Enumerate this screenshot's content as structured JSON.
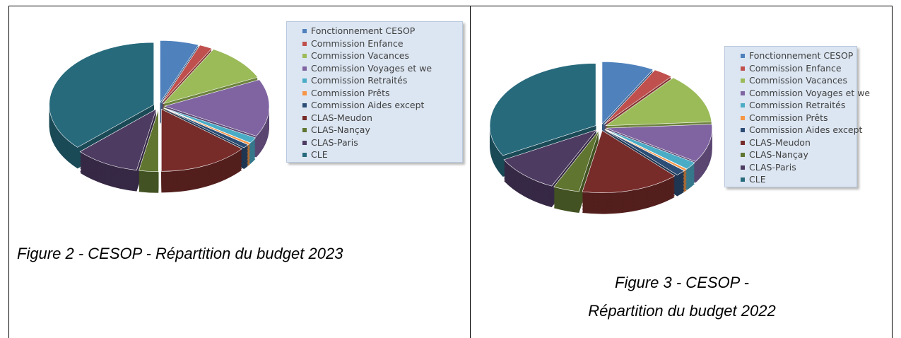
{
  "chart_data": [
    {
      "type": "pie",
      "caption": "Figure 2 - CESOP - Répartition du budget 2023",
      "categories": [
        "Fonctionnement CESOP",
        "Commission Enfance",
        "Commission Vacances",
        "Commission Voyages et we",
        "Commission Retraités",
        "Commission Prêts",
        "Commission Aides except",
        "CLAS-Meudon",
        "CLAS-Nançay",
        "CLAS-Paris",
        "CLE"
      ],
      "values": [
        6,
        2,
        10,
        15,
        1.5,
        0.5,
        1,
        14,
        3,
        10,
        37
      ],
      "colors": [
        "#4f81bd",
        "#c0504d",
        "#9bbb59",
        "#8064a2",
        "#4bacc6",
        "#f79646",
        "#2c4d75",
        "#772c2a",
        "#5f7530",
        "#4d3b62",
        "#276a7c"
      ]
    },
    {
      "type": "pie",
      "caption": "Figure 3 - CESOP - Répartition du budget 2022",
      "categories": [
        "Fonctionnement CESOP",
        "Commission Enfance",
        "Commission Vacances",
        "Commission Voyages et we",
        "Commission Retraités",
        "Commission Prêts",
        "Commission Aides except",
        "CLAS-Meudon",
        "CLAS-Nançay",
        "CLAS-Paris",
        "CLE"
      ],
      "values": [
        8,
        3,
        13,
        10,
        2,
        0.5,
        1.5,
        15,
        4,
        10,
        33
      ],
      "colors": [
        "#4f81bd",
        "#c0504d",
        "#9bbb59",
        "#8064a2",
        "#4bacc6",
        "#f79646",
        "#2c4d75",
        "#772c2a",
        "#5f7530",
        "#4d3b62",
        "#276a7c"
      ]
    }
  ]
}
